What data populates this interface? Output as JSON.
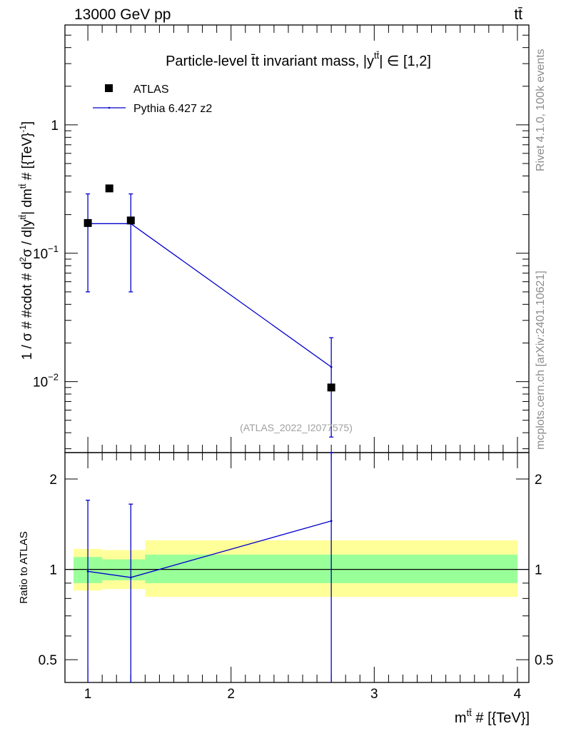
{
  "header": {
    "beam_label": "13000 GeV pp",
    "process_label": "tt̄"
  },
  "side_labels": {
    "rivet": "Rivet 4.1.0,  100k events",
    "site": "mcplots.cern.ch [arXiv:2401.10621]"
  },
  "colors": {
    "data": "#000000",
    "mc": "#0000cc",
    "band_inner": "#99ff99",
    "band_outer": "#ffff99"
  },
  "chart_data": [
    {
      "type": "scatter",
      "panel": "main",
      "title": "Particle-level t̄t invariant mass, |y^{tt̄}| ∈ [1,2]",
      "xlabel": "m^{tt̄} # [{TeV}]",
      "ylabel": "1 / σ # #cdot # d²σ / d|y^{tt̄}| dm^{tt̄} # [{TeV}⁻¹]",
      "yscale": "log",
      "xlim": [
        0.84,
        4.08
      ],
      "ylim": [
        0.0028,
        6.0
      ],
      "y_ticks": [
        {
          "value": 0.01,
          "base": "10",
          "exp": "−2"
        },
        {
          "value": 0.1,
          "base": "10",
          "exp": "−1"
        },
        {
          "value": 1,
          "base": "1",
          "exp": ""
        }
      ],
      "legend_position": "top-left",
      "watermark": "(ATLAS_2022_I2077575)",
      "series": [
        {
          "name": "ATLAS",
          "style": "markers",
          "x": [
            1.0,
            1.15,
            1.3,
            2.7
          ],
          "y": [
            0.172,
            0.32,
            0.18,
            0.009
          ]
        },
        {
          "name": "Pythia 6.427 z2",
          "style": "step-line",
          "x": [
            1.0,
            1.3,
            2.7
          ],
          "y": [
            0.17,
            0.17,
            0.013
          ],
          "step_from": [
            0.0,
            1.3
          ],
          "yerr_low": [
            0.05,
            0.05,
            0.0037
          ],
          "yerr_high": [
            0.29,
            0.29,
            0.022
          ]
        }
      ]
    },
    {
      "type": "line",
      "panel": "ratio",
      "ylabel": "Ratio to ATLAS",
      "xlabel": "m^{tt̄} # [{TeV}]",
      "yscale": "log",
      "xlim": [
        0.84,
        4.08
      ],
      "ylim": [
        0.42,
        2.45
      ],
      "x_ticks": [
        1,
        2,
        3,
        4
      ],
      "y_ticks": [
        {
          "value": 0.5,
          "label": "0.5"
        },
        {
          "value": 1,
          "label": "1"
        },
        {
          "value": 2,
          "label": "2"
        }
      ],
      "bands": [
        {
          "x0": 0.9,
          "x1": 1.1,
          "inner": [
            0.9,
            1.1
          ],
          "outer": [
            0.85,
            1.17
          ]
        },
        {
          "x0": 1.1,
          "x1": 1.4,
          "inner": [
            0.92,
            1.08
          ],
          "outer": [
            0.86,
            1.16
          ]
        },
        {
          "x0": 1.4,
          "x1": 4.0,
          "inner": [
            0.9,
            1.12
          ],
          "outer": [
            0.81,
            1.25
          ]
        }
      ],
      "series": [
        {
          "name": "Pythia 6.427 z2",
          "x": [
            1.0,
            1.3,
            2.7
          ],
          "y": [
            0.985,
            0.94,
            1.45
          ],
          "yerr_low": [
            0.3,
            0.3,
            0.4
          ],
          "yerr_high": [
            1.7,
            1.65,
            2.45
          ]
        }
      ]
    }
  ]
}
